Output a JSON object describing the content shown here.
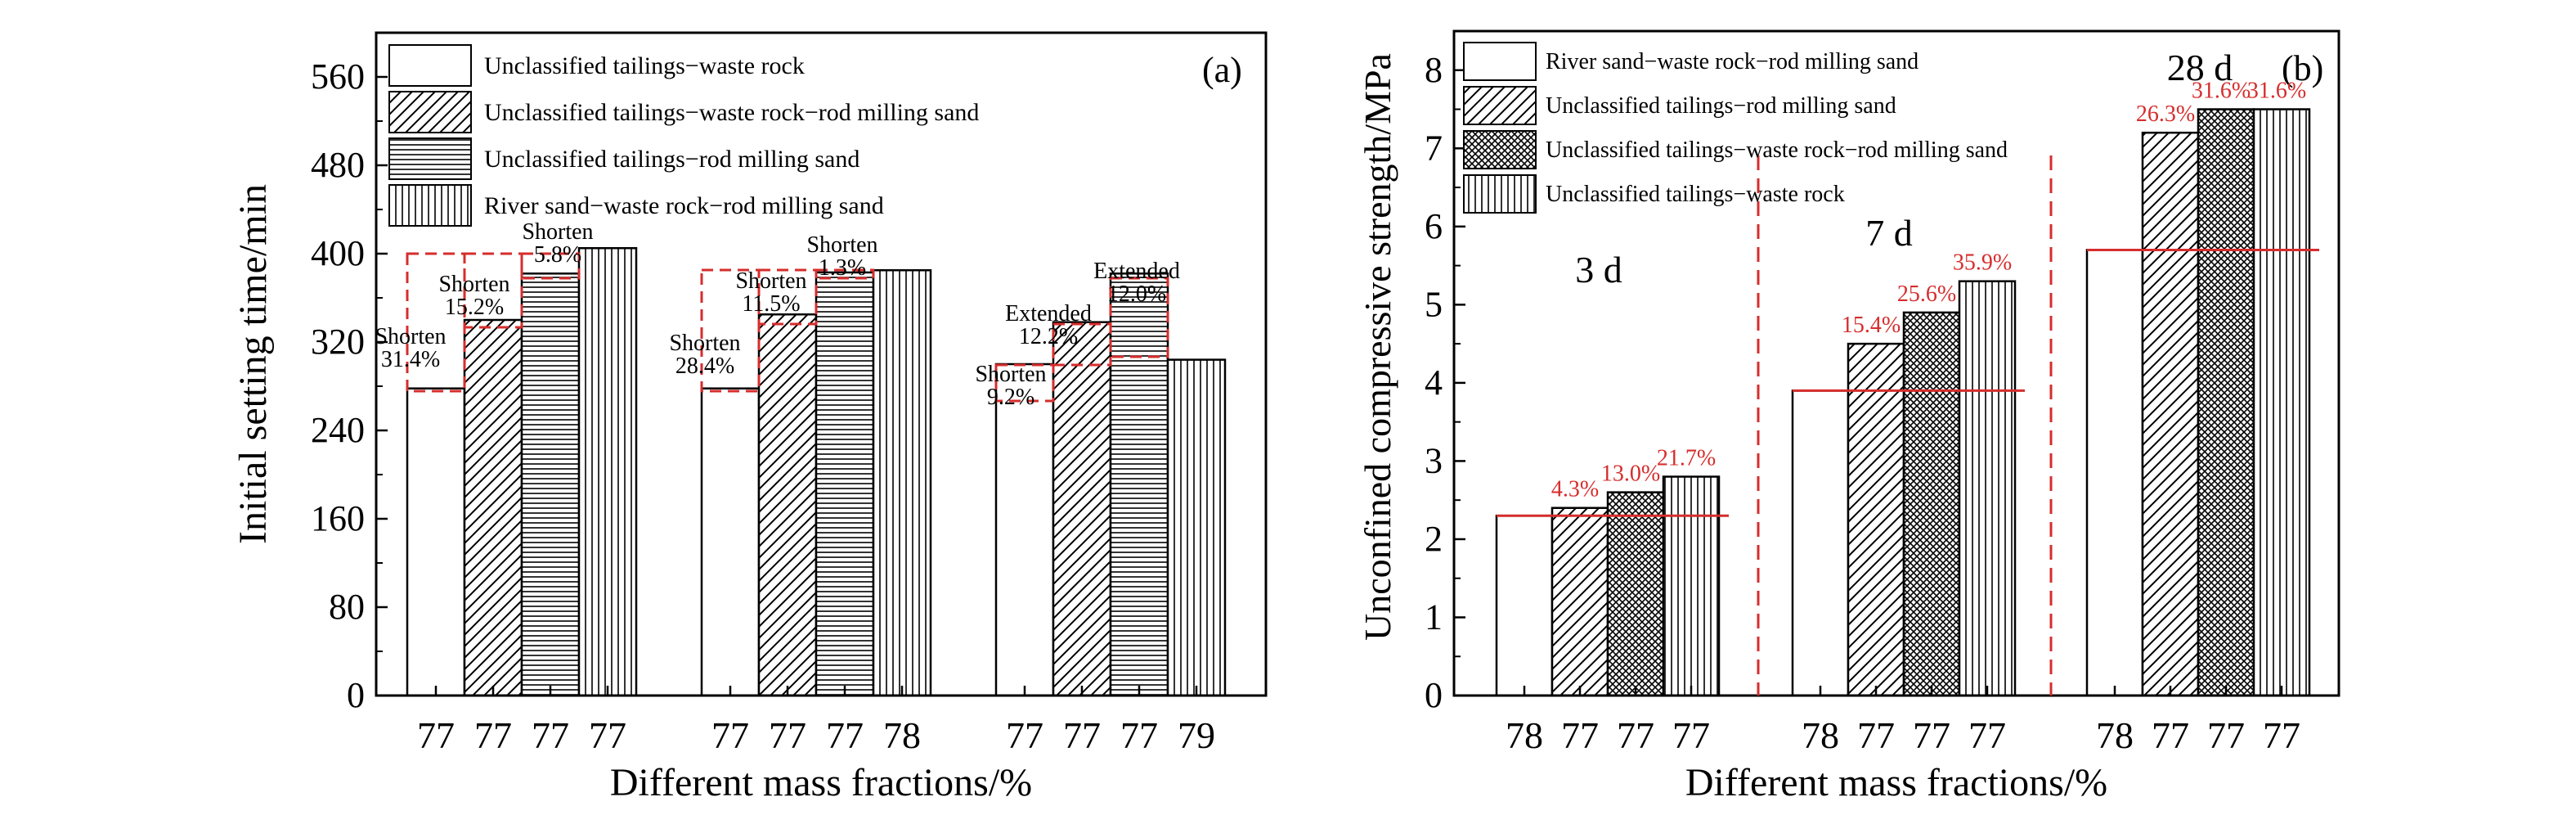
{
  "colors": {
    "axis": "#000000",
    "annotation_red": "#d62d2d",
    "bar_fill": "#ffffff"
  },
  "chart_data": [
    {
      "panel": "(a)",
      "type": "bar",
      "xlabel": "Different mass fractions/%",
      "ylabel": "Initial setting time/min",
      "ylim": [
        0,
        600
      ],
      "yticks": [
        "0",
        "80",
        "160",
        "240",
        "320",
        "400",
        "480",
        "560"
      ],
      "groups": [
        {
          "tick_labels": [
            "77",
            "77",
            "77",
            "77"
          ]
        },
        {
          "tick_labels": [
            "77",
            "77",
            "77",
            "78"
          ]
        },
        {
          "tick_labels": [
            "77",
            "77",
            "77",
            "79"
          ]
        }
      ],
      "series": [
        {
          "name": "Unclassified tailings−waste rock",
          "pattern": "none",
          "values": [
            278,
            278,
            300
          ]
        },
        {
          "name": "Unclassified tailings−waste rock−rod milling sand",
          "pattern": "diag",
          "values": [
            340,
            345,
            338
          ]
        },
        {
          "name": "Unclassified tailings−rod milling sand",
          "pattern": "horiz",
          "values": [
            382,
            383,
            382
          ]
        },
        {
          "name": "River sand−waste rock−rod milling sand",
          "pattern": "vert",
          "values": [
            405,
            385,
            304
          ]
        }
      ],
      "annotations": [
        {
          "lines": [
            "Shorten",
            "31.4%"
          ],
          "x": 0.0,
          "y": 312
        },
        {
          "lines": [
            "Shorten",
            "15.2%"
          ],
          "x": 1.0,
          "y": 360
        },
        {
          "lines": [
            "Shorten",
            "5.8%"
          ],
          "x": 2.0,
          "y": 403
        },
        {
          "lines": [
            "Shorten",
            "28.4%"
          ],
          "x": 4.6,
          "y": 310
        },
        {
          "lines": [
            "Shorten",
            "11.5%"
          ],
          "x": 5.6,
          "y": 358
        },
        {
          "lines": [
            "Shorten",
            "1.3%"
          ],
          "x": 6.6,
          "y": 390
        },
        {
          "lines": [
            "Shorten",
            "9.2%"
          ],
          "x": 9.2,
          "y": 280
        },
        {
          "lines": [
            "Extended",
            "12.2%"
          ],
          "x": 10.2,
          "y": 333
        },
        {
          "lines": [
            "Extended",
            "12.0%"
          ],
          "x": 11.2,
          "y": 372
        }
      ],
      "legend_position": "top-left"
    },
    {
      "panel": "(b)",
      "type": "bar",
      "xlabel": "Different mass fractions/%",
      "ylabel": "Unconfined compressive strength/MPa",
      "ylim": [
        0,
        8.5
      ],
      "yticks": [
        "0",
        "1",
        "2",
        "3",
        "4",
        "5",
        "6",
        "7",
        "8"
      ],
      "groups": [
        {
          "label": "3 d",
          "tick_labels": [
            "78",
            "77",
            "77",
            "77"
          ]
        },
        {
          "label": "7 d",
          "tick_labels": [
            "78",
            "77",
            "77",
            "77"
          ]
        },
        {
          "label": "28 d",
          "tick_labels": [
            "78",
            "77",
            "77",
            "77"
          ]
        }
      ],
      "series": [
        {
          "name": "River sand−waste rock−rod milling sand",
          "pattern": "none",
          "values": [
            2.3,
            3.9,
            5.7
          ]
        },
        {
          "name": "Unclassified tailings−rod milling sand",
          "pattern": "diag",
          "values": [
            2.4,
            4.5,
            7.2
          ]
        },
        {
          "name": "Unclassified tailings−waste rock−rod milling sand",
          "pattern": "cross",
          "values": [
            2.6,
            4.9,
            7.5
          ]
        },
        {
          "name": "Unclassified tailings−waste rock",
          "pattern": "vert",
          "values": [
            2.8,
            5.3,
            7.5
          ]
        }
      ],
      "increase_labels": [
        [
          "4.3%",
          "13.0%",
          "21.7%"
        ],
        [
          "15.4%",
          "25.6%",
          "35.9%"
        ],
        [
          "26.3%",
          "31.6%",
          "31.6%"
        ]
      ],
      "legend_position": "top-left"
    }
  ]
}
